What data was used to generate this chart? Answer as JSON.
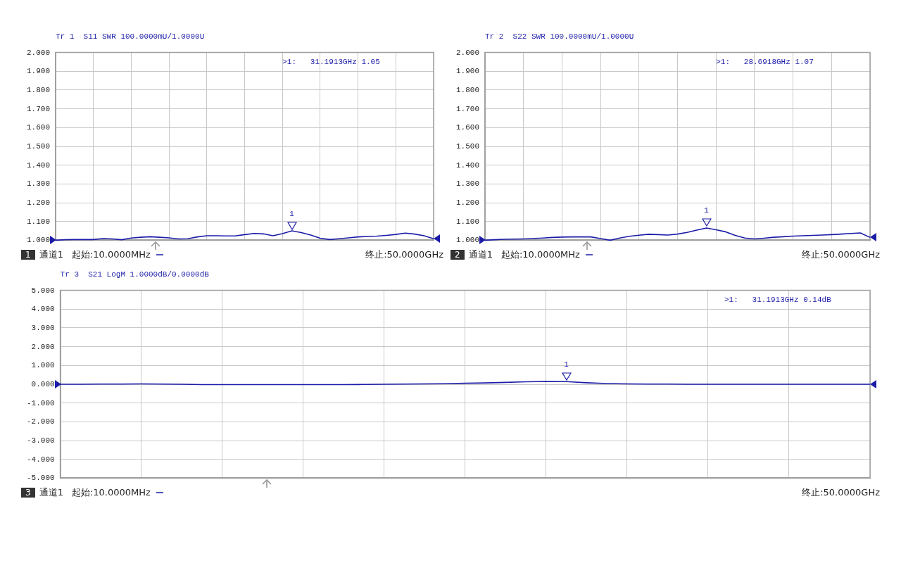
{
  "chart_data": [
    {
      "type": "line",
      "title": "Tr 1  S11 SWR 100.0000mU/1.0000U",
      "categories": [
        null,
        null,
        null,
        null,
        null,
        null,
        null,
        null,
        null,
        null,
        null,
        null,
        null,
        null,
        null,
        null,
        null,
        null,
        null,
        null,
        null,
        null,
        null,
        null,
        null,
        null,
        null,
        null,
        null,
        null,
        null,
        null,
        null,
        null,
        null,
        null,
        null,
        null,
        null,
        null,
        null
      ],
      "series": [
        {
          "color": "#1c1ca8",
          "values": [
            1.0,
            1.003,
            1.004,
            1.004,
            1.004,
            1.009,
            1.007,
            1.003,
            1.012,
            1.016,
            1.019,
            1.016,
            1.013,
            1.007,
            1.008,
            1.018,
            1.024,
            1.024,
            1.023,
            1.023,
            1.03,
            1.036,
            1.034,
            1.024,
            1.035,
            1.05,
            1.041,
            1.028,
            1.011,
            1.004,
            1.008,
            1.013,
            1.018,
            1.02,
            1.022,
            1.026,
            1.031,
            1.038,
            1.033,
            1.024,
            1.008
          ]
        }
      ],
      "ylim": [
        1.0,
        2.0
      ],
      "yticks": [
        {
          "value": 1.0,
          "label": "1.000"
        },
        {
          "value": 1.1,
          "label": "1.100"
        },
        {
          "value": 1.2,
          "label": "1.200"
        },
        {
          "value": 1.3,
          "label": "1.300"
        },
        {
          "value": 1.4,
          "label": "1.400"
        },
        {
          "value": 1.5,
          "label": "1.500"
        },
        {
          "value": 1.6,
          "label": "1.600"
        },
        {
          "value": 1.7,
          "label": "1.700"
        },
        {
          "value": 1.8,
          "label": "1.800"
        },
        {
          "value": 1.9,
          "label": "1.900"
        },
        {
          "value": 2.0,
          "label": "2.000"
        }
      ],
      "grid": true,
      "tick_labels": "y",
      "annotations": [
        ">1:   31.1913GHz 1.05",
        "1",
        "通道1",
        "起始:10.0000MHz",
        "终止:50.0000GHz",
        {
          "text": "1",
          "y": 1.05
        }
      ]
    },
    {
      "type": "line",
      "title": "Tr 2  S22 SWR 100.0000mU/1.0000U",
      "categories": [
        null,
        null,
        null,
        null,
        null,
        null,
        null,
        null,
        null,
        null,
        null,
        null,
        null,
        null,
        null,
        null,
        null,
        null,
        null,
        null,
        null,
        null,
        null,
        null,
        null,
        null,
        null,
        null,
        null,
        null,
        null,
        null,
        null,
        null,
        null,
        null,
        null,
        null,
        null,
        null,
        null
      ],
      "series": [
        {
          "color": "#1c1ca8",
          "values": [
            1.0,
            1.003,
            1.005,
            1.006,
            1.007,
            1.009,
            1.012,
            1.015,
            1.017,
            1.018,
            1.018,
            1.018,
            1.009,
            1.0,
            1.012,
            1.021,
            1.027,
            1.032,
            1.03,
            1.028,
            1.033,
            1.042,
            1.054,
            1.065,
            1.056,
            1.045,
            1.026,
            1.012,
            1.007,
            1.011,
            1.016,
            1.019,
            1.022,
            1.024,
            1.026,
            1.028,
            1.03,
            1.033,
            1.036,
            1.039,
            1.015
          ]
        }
      ],
      "ylim": [
        1.0,
        2.0
      ],
      "yticks": [
        {
          "value": 1.0,
          "label": "1.000"
        },
        {
          "value": 1.1,
          "label": "1.100"
        },
        {
          "value": 1.2,
          "label": "1.200"
        },
        {
          "value": 1.3,
          "label": "1.300"
        },
        {
          "value": 1.4,
          "label": "1.400"
        },
        {
          "value": 1.5,
          "label": "1.500"
        },
        {
          "value": 1.6,
          "label": "1.600"
        },
        {
          "value": 1.7,
          "label": "1.700"
        },
        {
          "value": 1.8,
          "label": "1.800"
        },
        {
          "value": 1.9,
          "label": "1.900"
        },
        {
          "value": 2.0,
          "label": "2.000"
        }
      ],
      "grid": true,
      "tick_labels": "y",
      "annotations": [
        ">1:   28.6918GHz 1.07",
        "2",
        "通道1",
        "起始:10.0000MHz",
        "终止:50.0000GHz",
        {
          "text": "1",
          "y": 1.07
        }
      ]
    },
    {
      "type": "line",
      "title": "Tr 3  S21 LogM 1.0000dB/0.0000dB",
      "categories": [
        null,
        null,
        null,
        null,
        null,
        null,
        null,
        null,
        null,
        null,
        null,
        null,
        null,
        null,
        null,
        null,
        null,
        null,
        null,
        null,
        null,
        null,
        null,
        null,
        null,
        null,
        null,
        null,
        null,
        null,
        null,
        null,
        null,
        null,
        null,
        null,
        null,
        null,
        null,
        null,
        null
      ],
      "series": [
        {
          "color": "#1c1ca8",
          "values": [
            0,
            0,
            0.01,
            0.01,
            0.02,
            0.01,
            0,
            -0.02,
            -0.02,
            -0.02,
            -0.02,
            -0.02,
            -0.02,
            -0.02,
            -0.02,
            -0.01,
            0,
            0.01,
            0.02,
            0.03,
            0.05,
            0.07,
            0.1,
            0.13,
            0.15,
            0.14,
            0.08,
            0.04,
            0.02,
            0.01,
            0.01,
            0,
            0,
            0,
            0,
            0,
            0,
            0,
            0,
            0,
            0
          ]
        }
      ],
      "ylim": [
        -5,
        5
      ],
      "yticks": [
        {
          "value": -5,
          "label": "-5.000"
        },
        {
          "value": -4,
          "label": "-4.000"
        },
        {
          "value": -3,
          "label": "-3.000"
        },
        {
          "value": -2,
          "label": "-2.000"
        },
        {
          "value": -1,
          "label": "-1.000"
        },
        {
          "value": 0,
          "label": "0.000"
        },
        {
          "value": 1,
          "label": "1.000"
        },
        {
          "value": 2,
          "label": "2.000"
        },
        {
          "value": 3,
          "label": "3.000"
        },
        {
          "value": 4,
          "label": "4.000"
        },
        {
          "value": 5,
          "label": "5.000"
        }
      ],
      "grid": true,
      "tick_labels": "y",
      "annotations": [
        ">1:   31.1913GHz 0.14dB",
        "3",
        "通道1",
        "起始:10.0000MHz",
        "终止:50.0000GHz",
        {
          "text": "1",
          "y": 0.14
        }
      ]
    }
  ]
}
